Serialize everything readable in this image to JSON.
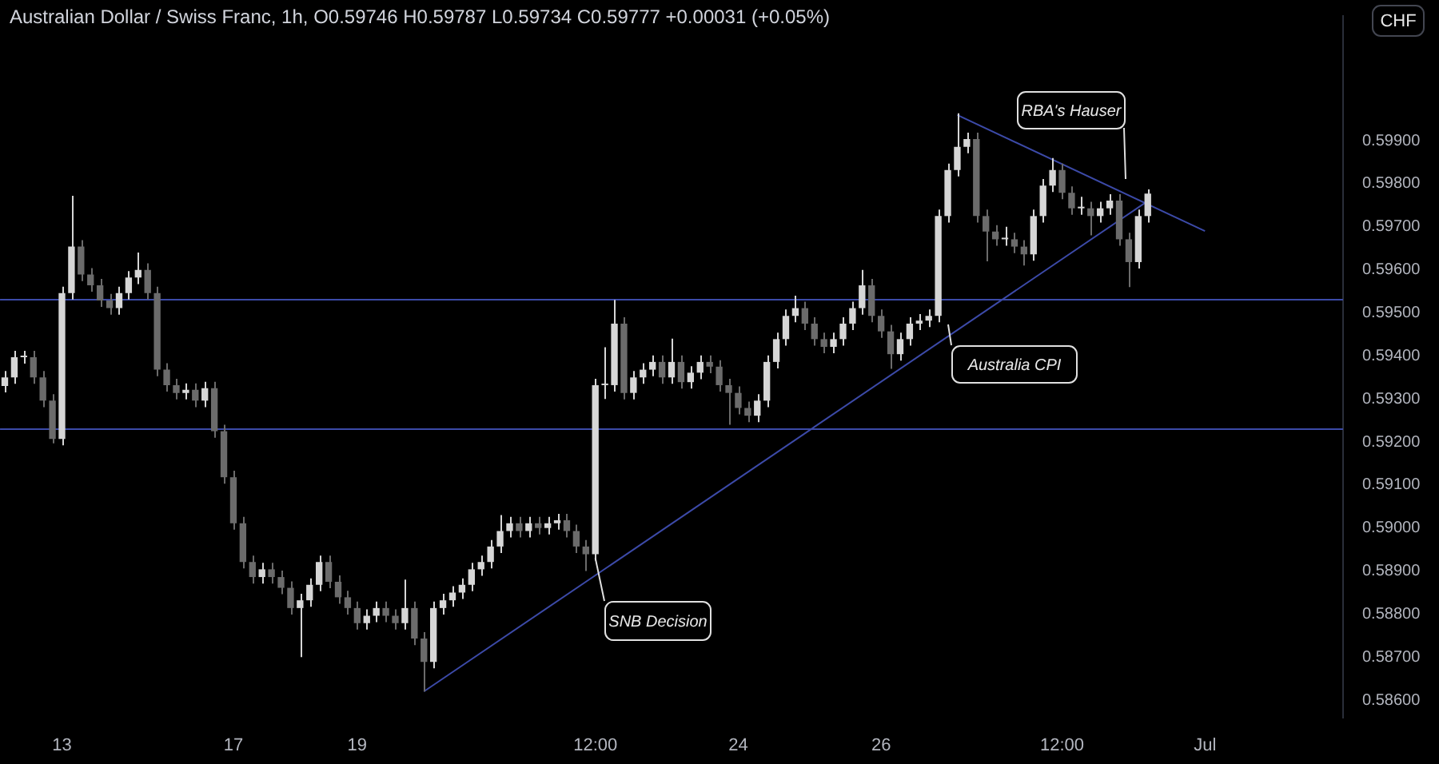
{
  "chart_data": {
    "type": "candlestick",
    "title": "Australian Dollar / Swiss Franc, 1h, O0.59746 H0.59787 L0.59734 C0.59777 +0.00031 (+0.05%)",
    "categories": [
      null,
      null,
      null,
      null,
      null,
      null,
      "13",
      null,
      null,
      null,
      null,
      null,
      null,
      null,
      null,
      null,
      null,
      null,
      null,
      null,
      null,
      null,
      null,
      null,
      "17",
      null,
      null,
      null,
      null,
      null,
      null,
      null,
      null,
      null,
      null,
      null,
      null,
      "19",
      null,
      null,
      null,
      null,
      null,
      null,
      null,
      null,
      null,
      null,
      null,
      null,
      null,
      null,
      null,
      null,
      null,
      null,
      null,
      null,
      null,
      null,
      null,
      null,
      "12:00",
      null,
      null,
      null,
      null,
      null,
      null,
      null,
      null,
      null,
      null,
      null,
      null,
      null,
      null,
      "24",
      null,
      null,
      null,
      null,
      null,
      null,
      null,
      null,
      null,
      null,
      null,
      null,
      null,
      null,
      "26",
      null,
      null,
      null,
      null,
      null,
      null,
      null,
      null,
      null,
      null,
      null,
      null,
      null,
      null,
      null,
      null,
      null,
      null,
      "12:00",
      null,
      null,
      null,
      null,
      null,
      null,
      null,
      null,
      null,
      null,
      null,
      null,
      null,
      null,
      "Jul",
      null,
      null,
      null,
      null,
      null,
      null,
      null,
      null,
      null,
      null,
      null,
      null,
      null,
      null
    ],
    "ohlc": [
      [
        0.5933,
        0.59365,
        0.59315,
        0.5935
      ],
      [
        0.5935,
        0.59412,
        0.59335,
        0.59397
      ],
      [
        0.59397,
        0.59412,
        0.59382,
        0.59397
      ],
      [
        0.59397,
        0.59412,
        0.59335,
        0.5935
      ],
      [
        0.5935,
        0.59365,
        0.59281,
        0.59296
      ],
      [
        0.59296,
        0.59311,
        0.59197,
        0.59207
      ],
      [
        0.59207,
        0.59561,
        0.59192,
        0.59546
      ],
      [
        0.59546,
        0.59772,
        0.59531,
        0.59654
      ],
      [
        0.59654,
        0.59669,
        0.59574,
        0.59589
      ],
      [
        0.59589,
        0.59604,
        0.59549,
        0.59564
      ],
      [
        0.59564,
        0.59579,
        0.59514,
        0.59529
      ],
      [
        0.59529,
        0.59544,
        0.59496,
        0.59511
      ],
      [
        0.59511,
        0.59561,
        0.59496,
        0.59546
      ],
      [
        0.59546,
        0.59597,
        0.59531,
        0.59582
      ],
      [
        0.59582,
        0.5964,
        0.59567,
        0.596
      ],
      [
        0.596,
        0.59615,
        0.59531,
        0.59546
      ],
      [
        0.59546,
        0.59561,
        0.59353,
        0.59368
      ],
      [
        0.59368,
        0.59383,
        0.59317,
        0.59332
      ],
      [
        0.59332,
        0.59347,
        0.59299,
        0.59314
      ],
      [
        0.59314,
        0.59336,
        0.59299,
        0.59321
      ],
      [
        0.59321,
        0.59336,
        0.59281,
        0.59296
      ],
      [
        0.59296,
        0.5934,
        0.59281,
        0.59325
      ],
      [
        0.59325,
        0.5934,
        0.5921,
        0.59225
      ],
      [
        0.59225,
        0.5924,
        0.59103,
        0.59118
      ],
      [
        0.59118,
        0.59133,
        0.58996,
        0.59011
      ],
      [
        0.59011,
        0.59026,
        0.58906,
        0.58921
      ],
      [
        0.58921,
        0.58936,
        0.58871,
        0.58886
      ],
      [
        0.58886,
        0.58919,
        0.58871,
        0.58904
      ],
      [
        0.58904,
        0.58919,
        0.58871,
        0.58886
      ],
      [
        0.58886,
        0.58901,
        0.58846,
        0.58861
      ],
      [
        0.58861,
        0.58876,
        0.58799,
        0.58814
      ],
      [
        0.58814,
        0.58847,
        0.587,
        0.58832
      ],
      [
        0.58832,
        0.58883,
        0.58817,
        0.58868
      ],
      [
        0.58868,
        0.58936,
        0.58853,
        0.58921
      ],
      [
        0.58921,
        0.58936,
        0.5886,
        0.58875
      ],
      [
        0.58875,
        0.5889,
        0.58824,
        0.58839
      ],
      [
        0.58839,
        0.58854,
        0.58799,
        0.58814
      ],
      [
        0.58814,
        0.58829,
        0.58764,
        0.58779
      ],
      [
        0.58779,
        0.58811,
        0.58764,
        0.58796
      ],
      [
        0.58796,
        0.58829,
        0.58781,
        0.58814
      ],
      [
        0.58814,
        0.58829,
        0.58781,
        0.58796
      ],
      [
        0.58796,
        0.58811,
        0.58764,
        0.58779
      ],
      [
        0.58779,
        0.5888,
        0.58764,
        0.58814
      ],
      [
        0.58814,
        0.58829,
        0.58728,
        0.58743
      ],
      [
        0.58743,
        0.58758,
        0.5862,
        0.58689
      ],
      [
        0.58689,
        0.58829,
        0.58674,
        0.58814
      ],
      [
        0.58814,
        0.58847,
        0.58799,
        0.58832
      ],
      [
        0.58832,
        0.58865,
        0.58817,
        0.5885
      ],
      [
        0.5885,
        0.58883,
        0.58835,
        0.58868
      ],
      [
        0.58868,
        0.58919,
        0.58853,
        0.58904
      ],
      [
        0.58904,
        0.58936,
        0.58889,
        0.58921
      ],
      [
        0.58921,
        0.58972,
        0.58906,
        0.58957
      ],
      [
        0.58957,
        0.5903,
        0.58942,
        0.58993
      ],
      [
        0.58993,
        0.59026,
        0.58978,
        0.59011
      ],
      [
        0.59011,
        0.59026,
        0.58978,
        0.58993
      ],
      [
        0.58993,
        0.59026,
        0.58978,
        0.59011
      ],
      [
        0.59011,
        0.59026,
        0.58985,
        0.59
      ],
      [
        0.59,
        0.59026,
        0.58985,
        0.59011
      ],
      [
        0.59011,
        0.59033,
        0.58996,
        0.59018
      ],
      [
        0.59018,
        0.59033,
        0.58978,
        0.58993
      ],
      [
        0.58993,
        0.59008,
        0.58942,
        0.58957
      ],
      [
        0.58957,
        0.58972,
        0.589,
        0.58939
      ],
      [
        0.58939,
        0.59347,
        0.58924,
        0.59332
      ],
      [
        0.59332,
        0.5942,
        0.593,
        0.59332
      ],
      [
        0.59332,
        0.5953,
        0.59317,
        0.59475
      ],
      [
        0.59475,
        0.5949,
        0.59299,
        0.59314
      ],
      [
        0.59314,
        0.59365,
        0.59299,
        0.5935
      ],
      [
        0.5935,
        0.59383,
        0.59335,
        0.59368
      ],
      [
        0.59368,
        0.59401,
        0.59353,
        0.59386
      ],
      [
        0.59386,
        0.59401,
        0.59335,
        0.5935
      ],
      [
        0.5935,
        0.5944,
        0.59335,
        0.59386
      ],
      [
        0.59386,
        0.59401,
        0.59324,
        0.59339
      ],
      [
        0.59339,
        0.59376,
        0.59324,
        0.59361
      ],
      [
        0.59361,
        0.59401,
        0.59346,
        0.59386
      ],
      [
        0.59386,
        0.59401,
        0.5936,
        0.59375
      ],
      [
        0.59375,
        0.5939,
        0.59317,
        0.59332
      ],
      [
        0.59332,
        0.59347,
        0.5924,
        0.59314
      ],
      [
        0.59314,
        0.59329,
        0.59264,
        0.59279
      ],
      [
        0.59279,
        0.59294,
        0.59246,
        0.59261
      ],
      [
        0.59261,
        0.59311,
        0.59246,
        0.59296
      ],
      [
        0.59296,
        0.59401,
        0.59281,
        0.59386
      ],
      [
        0.59386,
        0.59454,
        0.59371,
        0.59439
      ],
      [
        0.59439,
        0.59508,
        0.59424,
        0.59493
      ],
      [
        0.59493,
        0.5954,
        0.59478,
        0.59511
      ],
      [
        0.59511,
        0.59526,
        0.5946,
        0.59475
      ],
      [
        0.59475,
        0.5949,
        0.59424,
        0.59439
      ],
      [
        0.59439,
        0.59454,
        0.59406,
        0.59421
      ],
      [
        0.59421,
        0.59454,
        0.59406,
        0.59439
      ],
      [
        0.59439,
        0.5949,
        0.59424,
        0.59475
      ],
      [
        0.59475,
        0.59526,
        0.5946,
        0.59511
      ],
      [
        0.59511,
        0.596,
        0.59496,
        0.59564
      ],
      [
        0.59564,
        0.59579,
        0.59478,
        0.59493
      ],
      [
        0.59493,
        0.59508,
        0.59442,
        0.59457
      ],
      [
        0.59457,
        0.59472,
        0.5937,
        0.59404
      ],
      [
        0.59404,
        0.59454,
        0.59389,
        0.59439
      ],
      [
        0.59439,
        0.5949,
        0.59424,
        0.59475
      ],
      [
        0.59475,
        0.59497,
        0.5946,
        0.59482
      ],
      [
        0.59482,
        0.59508,
        0.59467,
        0.59493
      ],
      [
        0.59493,
        0.5974,
        0.59478,
        0.59725
      ],
      [
        0.59725,
        0.59847,
        0.5971,
        0.59832
      ],
      [
        0.59832,
        0.59964,
        0.59817,
        0.59886
      ],
      [
        0.59886,
        0.59919,
        0.59871,
        0.59904
      ],
      [
        0.59904,
        0.59919,
        0.5971,
        0.59725
      ],
      [
        0.59725,
        0.5974,
        0.5962,
        0.59689
      ],
      [
        0.59689,
        0.59704,
        0.59656,
        0.59671
      ],
      [
        0.59671,
        0.597,
        0.59656,
        0.59671
      ],
      [
        0.59671,
        0.59686,
        0.59639,
        0.59654
      ],
      [
        0.59654,
        0.59669,
        0.5961,
        0.59636
      ],
      [
        0.59636,
        0.5974,
        0.59621,
        0.59725
      ],
      [
        0.59725,
        0.59811,
        0.5971,
        0.59796
      ],
      [
        0.59796,
        0.5986,
        0.59781,
        0.59832
      ],
      [
        0.59832,
        0.59847,
        0.59764,
        0.59779
      ],
      [
        0.59779,
        0.59794,
        0.59728,
        0.59743
      ],
      [
        0.59743,
        0.5977,
        0.59728,
        0.59743
      ],
      [
        0.59743,
        0.59758,
        0.5968,
        0.59725
      ],
      [
        0.59725,
        0.59758,
        0.5971,
        0.59743
      ],
      [
        0.59743,
        0.59776,
        0.59728,
        0.59761
      ],
      [
        0.59761,
        0.59776,
        0.59656,
        0.59671
      ],
      [
        0.59671,
        0.59686,
        0.5956,
        0.59618
      ],
      [
        0.59618,
        0.5974,
        0.59603,
        0.59725
      ],
      [
        0.59725,
        0.59787,
        0.5971,
        0.59777
      ],
      null,
      null,
      null,
      null,
      null,
      null,
      null,
      null,
      null,
      null,
      null,
      null,
      null,
      null,
      null,
      null,
      null,
      null,
      null,
      null
    ],
    "colors": [
      "#d6d6d6",
      "#d6d6d6",
      "#d6d6d6",
      "#6b6b6b",
      "#6b6b6b",
      "#6b6b6b",
      "#d6d6d6",
      "#d6d6d6",
      "#6b6b6b",
      "#6b6b6b",
      "#6b6b6b",
      "#6b6b6b",
      "#d6d6d6",
      "#d6d6d6",
      "#d6d6d6",
      "#6b6b6b",
      "#6b6b6b",
      "#6b6b6b",
      "#6b6b6b",
      "#d6d6d6",
      "#6b6b6b",
      "#d6d6d6",
      "#6b6b6b",
      "#6b6b6b",
      "#6b6b6b",
      "#6b6b6b",
      "#6b6b6b",
      "#d6d6d6",
      "#6b6b6b",
      "#6b6b6b",
      "#6b6b6b",
      "#d6d6d6",
      "#d6d6d6",
      "#d6d6d6",
      "#6b6b6b",
      "#6b6b6b",
      "#6b6b6b",
      "#6b6b6b",
      "#d6d6d6",
      "#d6d6d6",
      "#6b6b6b",
      "#6b6b6b",
      "#d6d6d6",
      "#6b6b6b",
      "#6b6b6b",
      "#d6d6d6",
      "#d6d6d6",
      "#d6d6d6",
      "#d6d6d6",
      "#d6d6d6",
      "#d6d6d6",
      "#d6d6d6",
      "#d6d6d6",
      "#d6d6d6",
      "#6b6b6b",
      "#d6d6d6",
      "#6b6b6b",
      "#d6d6d6",
      "#d6d6d6",
      "#6b6b6b",
      "#6b6b6b",
      "#6b6b6b",
      "#d6d6d6",
      "#d6d6d6",
      "#d6d6d6",
      "#6b6b6b",
      "#d6d6d6",
      "#d6d6d6",
      "#d6d6d6",
      "#6b6b6b",
      "#d6d6d6",
      "#6b6b6b",
      "#d6d6d6",
      "#d6d6d6",
      "#6b6b6b",
      "#6b6b6b",
      "#6b6b6b",
      "#6b6b6b",
      "#6b6b6b",
      "#d6d6d6",
      "#d6d6d6",
      "#d6d6d6",
      "#d6d6d6",
      "#d6d6d6",
      "#6b6b6b",
      "#6b6b6b",
      "#6b6b6b",
      "#d6d6d6",
      "#d6d6d6",
      "#d6d6d6",
      "#d6d6d6",
      "#6b6b6b",
      "#6b6b6b",
      "#6b6b6b",
      "#d6d6d6",
      "#d6d6d6",
      "#d6d6d6",
      "#d6d6d6",
      "#d6d6d6",
      "#d6d6d6",
      "#d6d6d6",
      "#d6d6d6",
      "#6b6b6b",
      "#6b6b6b",
      "#6b6b6b",
      "#d6d6d6",
      "#6b6b6b",
      "#6b6b6b",
      "#d6d6d6",
      "#d6d6d6",
      "#d6d6d6",
      "#6b6b6b",
      "#6b6b6b",
      "#d6d6d6",
      "#6b6b6b",
      "#d6d6d6",
      "#d6d6d6",
      "#6b6b6b",
      "#6b6b6b",
      "#d6d6d6",
      "#d6d6d6",
      null,
      null,
      null,
      null,
      null,
      null,
      null,
      null,
      null,
      null,
      null,
      null,
      null,
      null,
      null,
      null,
      null,
      null,
      null,
      null
    ],
    "series": [
      {
        "type": "line",
        "color": "#3c4aa8",
        "values": [
          null,
          null,
          null,
          null,
          null,
          null,
          null,
          null,
          null,
          null,
          null,
          null,
          null,
          null,
          null,
          null,
          null,
          null,
          null,
          null,
          null,
          null,
          null,
          null,
          null,
          null,
          null,
          null,
          null,
          null,
          null,
          null,
          null,
          null,
          null,
          null,
          null,
          null,
          null,
          null,
          null,
          null,
          null,
          null,
          0.5862,
          null,
          null,
          null,
          null,
          null,
          null,
          null,
          null,
          null,
          null,
          null,
          null,
          null,
          null,
          null,
          null,
          null,
          null,
          null,
          null,
          null,
          null,
          null,
          null,
          null,
          null,
          null,
          null,
          null,
          null,
          null,
          null,
          null,
          null,
          null,
          null,
          null,
          null,
          null,
          null,
          null,
          null,
          null,
          null,
          null,
          null,
          null,
          null,
          null,
          null,
          null,
          null,
          null,
          null,
          null,
          null,
          null,
          null,
          null,
          null,
          null,
          null,
          null,
          null,
          null,
          null,
          null,
          null,
          null,
          null,
          null,
          null,
          null,
          null,
          null,
          0.5976,
          null,
          null,
          null,
          null,
          null,
          null,
          null,
          null,
          null,
          null,
          null,
          null,
          null,
          null,
          null,
          null,
          null,
          null,
          null,
          null
        ]
      },
      {
        "type": "line",
        "color": "#3c4aa8",
        "values": [
          null,
          null,
          null,
          null,
          null,
          null,
          null,
          null,
          null,
          null,
          null,
          null,
          null,
          null,
          null,
          null,
          null,
          null,
          null,
          null,
          null,
          null,
          null,
          null,
          null,
          null,
          null,
          null,
          null,
          null,
          null,
          null,
          null,
          null,
          null,
          null,
          null,
          null,
          null,
          null,
          null,
          null,
          null,
          null,
          null,
          null,
          null,
          null,
          null,
          null,
          null,
          null,
          null,
          null,
          null,
          null,
          null,
          null,
          null,
          null,
          null,
          null,
          null,
          null,
          null,
          null,
          null,
          null,
          null,
          null,
          null,
          null,
          null,
          null,
          null,
          null,
          null,
          null,
          null,
          null,
          null,
          null,
          null,
          null,
          null,
          null,
          null,
          null,
          null,
          null,
          null,
          null,
          null,
          null,
          null,
          null,
          null,
          null,
          null,
          null,
          0.5996,
          null,
          null,
          null,
          null,
          null,
          null,
          null,
          null,
          null,
          null,
          null,
          null,
          null,
          null,
          null,
          null,
          null,
          null,
          null,
          null,
          null,
          null,
          null,
          null,
          null,
          0.5969,
          null,
          null,
          null,
          null,
          null,
          null,
          null,
          null,
          null,
          null,
          null,
          null,
          null,
          null
        ]
      }
    ],
    "ylim": [
      0.5856,
      0.6019
    ],
    "yticks": [
      {
        "value": 0.586,
        "label": "0.58600"
      },
      {
        "value": 0.587,
        "label": "0.58700"
      },
      {
        "value": 0.588,
        "label": "0.58800"
      },
      {
        "value": 0.589,
        "label": "0.58900"
      },
      {
        "value": 0.59,
        "label": "0.59000"
      },
      {
        "value": 0.591,
        "label": "0.59100"
      },
      {
        "value": 0.592,
        "label": "0.59200"
      },
      {
        "value": 0.593,
        "label": "0.59300"
      },
      {
        "value": 0.594,
        "label": "0.59400"
      },
      {
        "value": 0.595,
        "label": "0.59500"
      },
      {
        "value": 0.596,
        "label": "0.59600"
      },
      {
        "value": 0.597,
        "label": "0.59700"
      },
      {
        "value": 0.598,
        "label": "0.59800"
      },
      {
        "value": 0.599,
        "label": "0.59900"
      }
    ],
    "ref_lines": [
      {
        "axis": "y",
        "value": 0.59531,
        "color": "#3c4aa8"
      },
      {
        "axis": "y",
        "value": 0.59232,
        "color": "#3c4aa8"
      }
    ],
    "annotations": [
      {
        "text": "SNB Decision",
        "x": "12:00",
        "y": 0.5893
      },
      "Australia CPI",
      "RBA's Hauser",
      "CHF"
    ]
  }
}
